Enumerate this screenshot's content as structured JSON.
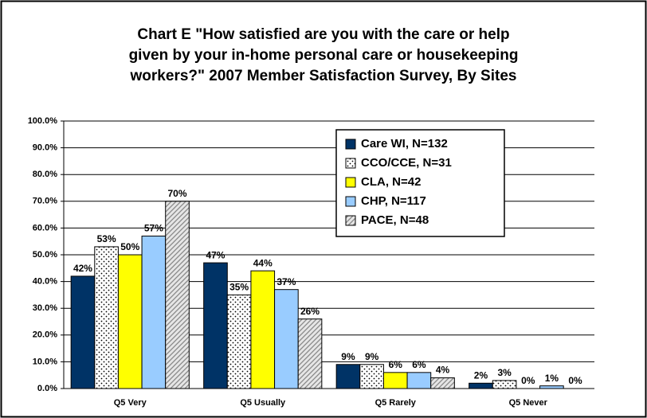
{
  "chart_data": {
    "type": "bar",
    "title": [
      "Chart E  \"How satisfied are you with the care or help",
      "given by your in-home personal care or housekeeping",
      "workers?\"  2007 Member Satisfaction Survey, By Sites"
    ],
    "categories": [
      "Q5 Very",
      "Q5 Usually",
      "Q5 Rarely",
      "Q5 Never"
    ],
    "series": [
      {
        "name": "Care WI, N=132",
        "color": "#003366",
        "values": [
          42,
          47,
          9,
          2
        ],
        "value_labels": [
          "42%",
          "47%",
          "9%",
          "2%"
        ]
      },
      {
        "name": "CCO/CCE, N=31",
        "color": "#ffffff",
        "pattern": "dots",
        "values": [
          53,
          35,
          9,
          3
        ],
        "value_labels": [
          "53%",
          "35%",
          "9%",
          "3%"
        ]
      },
      {
        "name": "CLA, N=42",
        "color": "#ffff00",
        "values": [
          50,
          44,
          6,
          0
        ],
        "value_labels": [
          "50%",
          "44%",
          "6%",
          "0%"
        ]
      },
      {
        "name": "CHP, N=117",
        "color": "#99ccff",
        "values": [
          57,
          37,
          6,
          1
        ],
        "value_labels": [
          "57%",
          "37%",
          "6%",
          "1%"
        ]
      },
      {
        "name": "PACE, N=48",
        "color": "#d9d9d9",
        "pattern": "diagonal",
        "values": [
          70,
          26,
          4,
          0
        ],
        "value_labels": [
          "70%",
          "26%",
          "4%",
          "0%"
        ]
      }
    ],
    "ylim": [
      0,
      100
    ],
    "yticks": [
      {
        "value": 0,
        "label": "0.0%"
      },
      {
        "value": 10,
        "label": "10.0%"
      },
      {
        "value": 20,
        "label": "20.0%"
      },
      {
        "value": 30,
        "label": "30.0%"
      },
      {
        "value": 40,
        "label": "40.0%"
      },
      {
        "value": 50,
        "label": "50.0%"
      },
      {
        "value": 60,
        "label": "60.0%"
      },
      {
        "value": 70,
        "label": "70.0%"
      },
      {
        "value": 80,
        "label": "80.0%"
      },
      {
        "value": 90,
        "label": "90.0%"
      },
      {
        "value": 100,
        "label": "100.0%"
      }
    ],
    "grid": true,
    "legend": "upper right"
  }
}
